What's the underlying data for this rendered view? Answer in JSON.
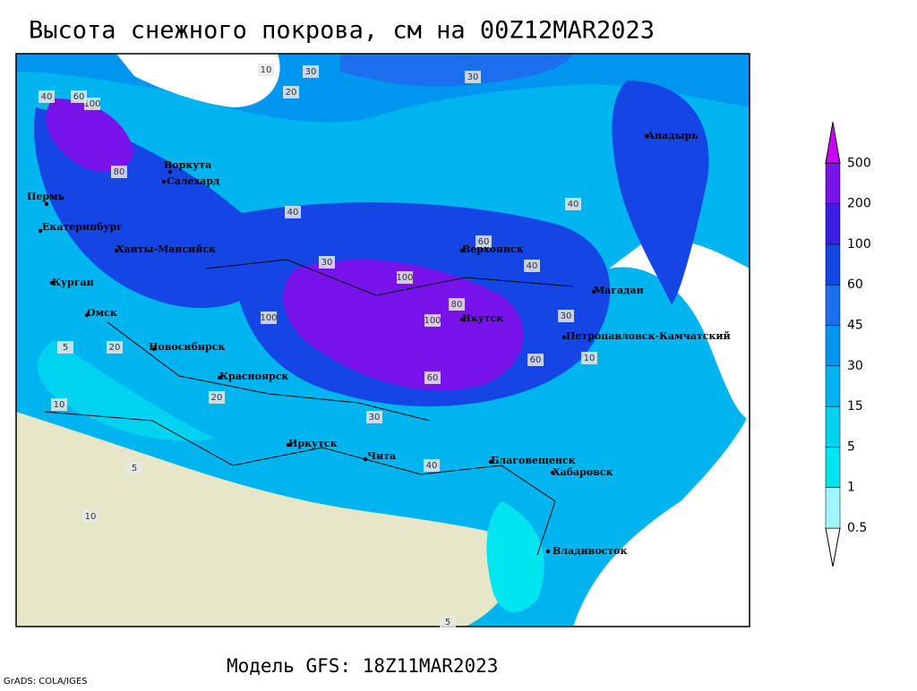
{
  "header": {
    "title": "Высота снежного покрова, см на 00Z12MAR2023"
  },
  "footer": {
    "model": "Модель GFS: 18Z11MAR2023",
    "credit": "GrADS: COLA/IGES"
  },
  "colorbar": {
    "levels": [
      0.5,
      1,
      5,
      15,
      30,
      45,
      60,
      100,
      200,
      500
    ],
    "colors": [
      "#a0f5ff",
      "#00e6f0",
      "#00d2f0",
      "#00b4f0",
      "#0096f0",
      "#1e6ef0",
      "#1446e6",
      "#3c1ee6",
      "#7814eb",
      "#a000f0",
      "#c800ff"
    ]
  },
  "cities": [
    "Воркута",
    "Салехард",
    "Пермь",
    "Екатеринбург",
    "Ханты-Мансийск",
    "Курган",
    "Омск",
    "Новосибирск",
    "Красноярск",
    "Иркутск",
    "Чита",
    "Верхоянск",
    "Якутск",
    "Магадан",
    "Анадырь",
    "Петропавловск-Камчатский",
    "Благовещенск",
    "Хабаровск",
    "Владивосток"
  ],
  "contour_labels": [
    10,
    30,
    20,
    40,
    100,
    60,
    80,
    30,
    40,
    60,
    100,
    100,
    80,
    60,
    40,
    30,
    10,
    5,
    20,
    10,
    5,
    20,
    30,
    40,
    60,
    10,
    5,
    40,
    100,
    30
  ]
}
